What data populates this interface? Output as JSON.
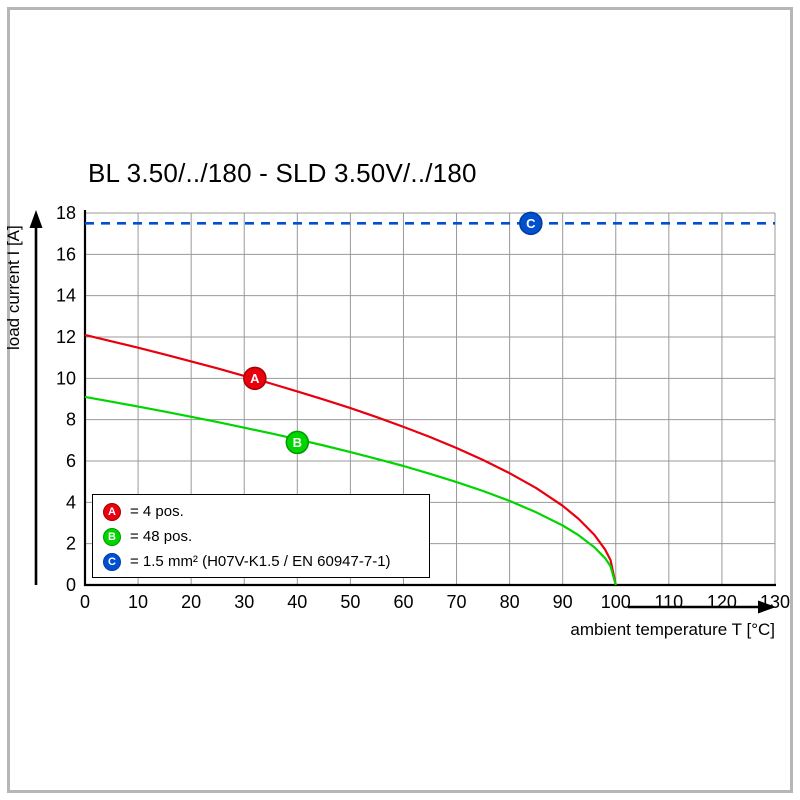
{
  "title": "BL 3.50/../180 - SLD 3.50V/../180",
  "colors": {
    "grid": "#999999",
    "axis": "#000000",
    "frame": "#b6b6b6"
  },
  "chart_data": {
    "type": "line",
    "title": "BL 3.50/../180 - SLD 3.50V/../180",
    "xlabel": "ambient temperature T [°C]",
    "ylabel": "load current I [A]",
    "xlim": [
      0,
      130
    ],
    "ylim": [
      0,
      18
    ],
    "xticks": [
      0,
      10,
      20,
      30,
      40,
      50,
      60,
      70,
      80,
      90,
      100,
      110,
      120,
      130
    ],
    "yticks": [
      0,
      2,
      4,
      6,
      8,
      10,
      12,
      14,
      16,
      18
    ],
    "grid": true,
    "legend_position": "bottom-left-inside",
    "series": [
      {
        "name": "A",
        "label": "= 4 pos.",
        "color": "#e8000e",
        "marker_stroke": "#a80000",
        "style": "solid",
        "marker_at": [
          32,
          10.0
        ],
        "points": [
          [
            0,
            12.1
          ],
          [
            5,
            11.79
          ],
          [
            10,
            11.48
          ],
          [
            15,
            11.16
          ],
          [
            20,
            10.82
          ],
          [
            25,
            10.48
          ],
          [
            30,
            10.12
          ],
          [
            35,
            9.75
          ],
          [
            40,
            9.37
          ],
          [
            45,
            8.97
          ],
          [
            50,
            8.56
          ],
          [
            55,
            8.12
          ],
          [
            60,
            7.65
          ],
          [
            65,
            7.16
          ],
          [
            70,
            6.63
          ],
          [
            75,
            6.05
          ],
          [
            80,
            5.41
          ],
          [
            85,
            4.69
          ],
          [
            90,
            3.83
          ],
          [
            93,
            3.2
          ],
          [
            96,
            2.42
          ],
          [
            98,
            1.71
          ],
          [
            99,
            1.21
          ],
          [
            100,
            0
          ]
        ]
      },
      {
        "name": "B",
        "label": "= 48 pos.",
        "color": "#00d500",
        "marker_stroke": "#009a00",
        "style": "solid",
        "marker_at": [
          40,
          6.9
        ],
        "points": [
          [
            0,
            9.1
          ],
          [
            5,
            8.87
          ],
          [
            10,
            8.63
          ],
          [
            15,
            8.39
          ],
          [
            20,
            8.14
          ],
          [
            25,
            7.88
          ],
          [
            30,
            7.61
          ],
          [
            35,
            7.34
          ],
          [
            40,
            7.05
          ],
          [
            45,
            6.75
          ],
          [
            50,
            6.43
          ],
          [
            55,
            6.1
          ],
          [
            60,
            5.76
          ],
          [
            65,
            5.38
          ],
          [
            70,
            4.98
          ],
          [
            75,
            4.55
          ],
          [
            80,
            4.07
          ],
          [
            85,
            3.52
          ],
          [
            90,
            2.88
          ],
          [
            93,
            2.41
          ],
          [
            96,
            1.82
          ],
          [
            98,
            1.29
          ],
          [
            99,
            0.91
          ],
          [
            100,
            0
          ]
        ]
      },
      {
        "name": "C",
        "label": "= 1.5 mm² (H07V-K1.5 / EN 60947-7-1)",
        "color": "#0050d0",
        "marker_stroke": "#003c9e",
        "style": "dashed",
        "marker_at": [
          84,
          17.5
        ],
        "points": [
          [
            0,
            17.5
          ],
          [
            130,
            17.5
          ]
        ]
      }
    ]
  }
}
